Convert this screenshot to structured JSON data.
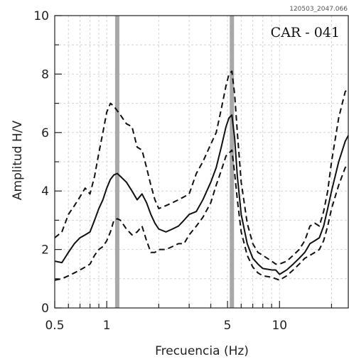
{
  "chart_data": {
    "type": "line",
    "title": "CAR - 041",
    "file_id": "120503_2047.066",
    "xlabel": "Frecuencia (Hz)",
    "ylabel": "Amplitud H/V",
    "x_scale": "log",
    "xlim": [
      0.5,
      25
    ],
    "ylim": [
      0,
      10
    ],
    "x_ticks": [
      {
        "value": 0.5,
        "label": "0.5"
      },
      {
        "value": 1,
        "label": "1"
      },
      {
        "value": 5,
        "label": "5"
      },
      {
        "value": 10,
        "label": "10"
      }
    ],
    "y_ticks": [
      {
        "value": 0,
        "label": "0"
      },
      {
        "value": 2,
        "label": "2"
      },
      {
        "value": 4,
        "label": "4"
      },
      {
        "value": 6,
        "label": "6"
      },
      {
        "value": 8,
        "label": "8"
      },
      {
        "value": 10,
        "label": "10"
      }
    ],
    "grid": true,
    "vertical_markers": [
      1.15,
      5.3
    ],
    "series": [
      {
        "style": "solid",
        "x": [
          0.5,
          0.55,
          0.6,
          0.65,
          0.7,
          0.75,
          0.8,
          0.85,
          0.9,
          0.95,
          1.0,
          1.05,
          1.1,
          1.15,
          1.2,
          1.3,
          1.4,
          1.5,
          1.6,
          1.7,
          1.8,
          1.9,
          2.0,
          2.2,
          2.4,
          2.6,
          2.8,
          3.0,
          3.3,
          3.6,
          4.0,
          4.3,
          4.6,
          4.9,
          5.1,
          5.3,
          5.5,
          5.7,
          6.0,
          6.5,
          7.0,
          7.5,
          8.0,
          9.0,
          9.5,
          10.0,
          11.0,
          12.0,
          13.0,
          14.0,
          15.0,
          16.0,
          17.0,
          18.0,
          19.0,
          20.0,
          22.0,
          24.0,
          25.0
        ],
        "y": [
          1.6,
          1.55,
          1.9,
          2.2,
          2.4,
          2.5,
          2.6,
          3.0,
          3.4,
          3.7,
          4.1,
          4.4,
          4.55,
          4.6,
          4.5,
          4.3,
          4.0,
          3.7,
          3.9,
          3.6,
          3.2,
          2.9,
          2.7,
          2.6,
          2.7,
          2.8,
          3.0,
          3.2,
          3.3,
          3.7,
          4.3,
          4.8,
          5.5,
          6.2,
          6.5,
          6.6,
          5.8,
          4.5,
          3.2,
          2.2,
          1.7,
          1.5,
          1.35,
          1.3,
          1.3,
          1.15,
          1.3,
          1.5,
          1.7,
          1.9,
          2.2,
          2.3,
          2.4,
          2.8,
          3.4,
          4.0,
          5.0,
          5.7,
          5.9
        ]
      },
      {
        "style": "dashed",
        "x": [
          0.5,
          0.55,
          0.6,
          0.65,
          0.7,
          0.75,
          0.8,
          0.85,
          0.9,
          0.95,
          1.0,
          1.05,
          1.1,
          1.2,
          1.3,
          1.4,
          1.5,
          1.6,
          1.7,
          1.8,
          1.9,
          2.0,
          2.2,
          2.4,
          2.6,
          2.8,
          3.0,
          3.3,
          3.6,
          4.0,
          4.3,
          4.6,
          4.9,
          5.1,
          5.3,
          5.5,
          5.7,
          6.0,
          6.5,
          7.0,
          7.5,
          8.0,
          9.0,
          9.5,
          10.0,
          11.0,
          12.0,
          13.0,
          14.0,
          15.0,
          16.0,
          17.0,
          18.0,
          19.0,
          20.0,
          22.0,
          24.0,
          25.0
        ],
        "y": [
          2.4,
          2.6,
          3.2,
          3.5,
          3.8,
          4.1,
          3.9,
          4.5,
          5.3,
          6.0,
          6.7,
          7.0,
          6.9,
          6.6,
          6.3,
          6.2,
          5.5,
          5.4,
          4.8,
          4.2,
          3.7,
          3.4,
          3.5,
          3.6,
          3.7,
          3.8,
          3.9,
          4.6,
          5.0,
          5.6,
          6.0,
          6.8,
          7.6,
          8.0,
          8.1,
          7.3,
          6.0,
          4.3,
          2.9,
          2.2,
          1.9,
          1.8,
          1.6,
          1.5,
          1.5,
          1.6,
          1.8,
          2.0,
          2.3,
          2.8,
          2.9,
          2.8,
          3.3,
          4.0,
          5.0,
          6.5,
          7.4,
          7.5
        ]
      },
      {
        "style": "dashed",
        "x": [
          0.5,
          0.55,
          0.6,
          0.65,
          0.7,
          0.75,
          0.8,
          0.85,
          0.9,
          0.95,
          1.0,
          1.05,
          1.1,
          1.15,
          1.2,
          1.3,
          1.4,
          1.5,
          1.6,
          1.7,
          1.8,
          1.9,
          2.0,
          2.2,
          2.4,
          2.6,
          2.8,
          3.0,
          3.3,
          3.6,
          4.0,
          4.3,
          4.6,
          4.9,
          5.1,
          5.3,
          5.5,
          5.7,
          6.0,
          6.5,
          7.0,
          7.5,
          8.0,
          9.0,
          9.5,
          10.0,
          11.0,
          12.0,
          13.0,
          14.0,
          15.0,
          16.0,
          17.0,
          18.0,
          19.0,
          20.0,
          22.0,
          24.0,
          25.0
        ],
        "y": [
          0.95,
          1.0,
          1.1,
          1.2,
          1.3,
          1.4,
          1.5,
          1.8,
          2.0,
          2.1,
          2.3,
          2.6,
          3.0,
          3.05,
          3.0,
          2.7,
          2.5,
          2.6,
          2.8,
          2.3,
          1.9,
          1.9,
          2.0,
          2.0,
          2.1,
          2.2,
          2.2,
          2.5,
          2.8,
          3.1,
          3.6,
          4.2,
          4.7,
          5.2,
          5.3,
          5.4,
          4.6,
          3.7,
          2.6,
          1.8,
          1.4,
          1.2,
          1.1,
          1.05,
          1.0,
          0.95,
          1.1,
          1.3,
          1.5,
          1.7,
          1.8,
          1.9,
          2.0,
          2.3,
          2.8,
          3.4,
          4.2,
          4.8,
          4.9
        ]
      }
    ]
  }
}
